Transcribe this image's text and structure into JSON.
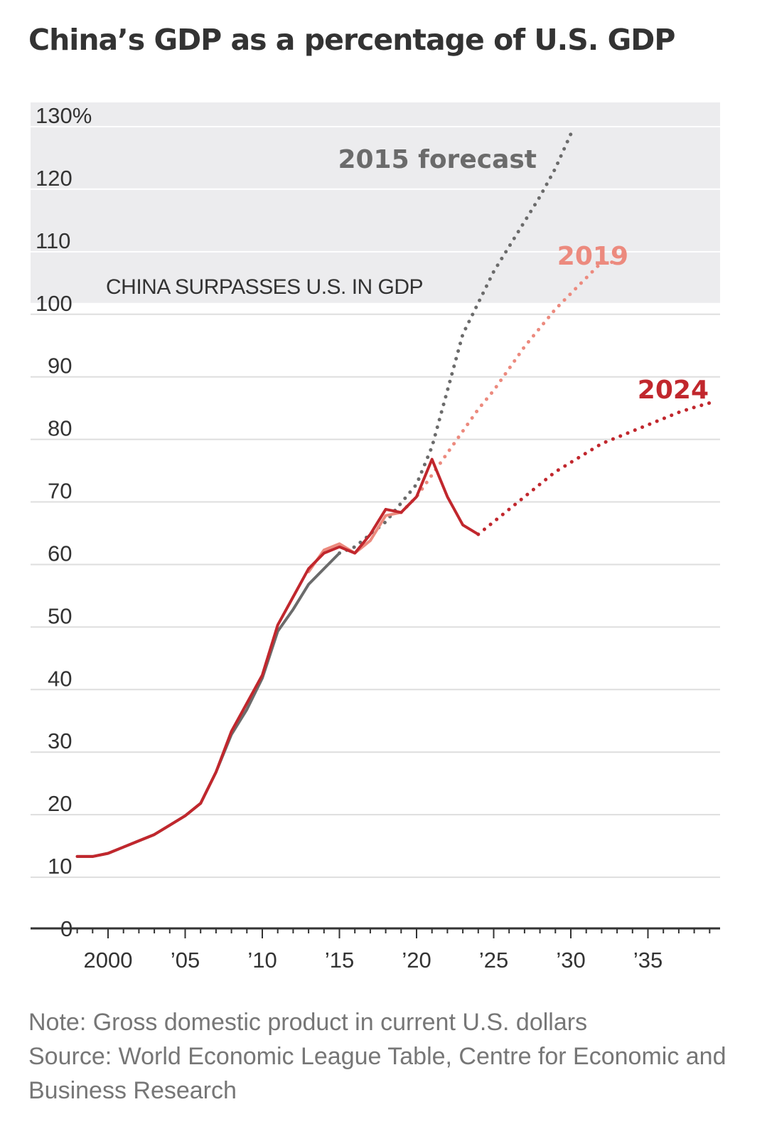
{
  "title": "China’s GDP as a percentage of U.S. GDP",
  "notes": {
    "note": "Note: Gross domestic product in current U.S. dollars",
    "source": "Source: World Economic League Table, Centre for Economic and Business Research"
  },
  "colors": {
    "forecast_2015": "#6b6b6b",
    "forecast_2019": "#ec8a7e",
    "forecast_2024": "#c1272d",
    "shade": "#ececee",
    "grid": "#dedede",
    "axis": "#333333"
  },
  "chart_data": {
    "type": "line",
    "title": "China’s GDP as a percentage of U.S. GDP",
    "xlabel": "",
    "ylabel": "",
    "xlim": [
      1998,
      2039
    ],
    "ylim": [
      0,
      130
    ],
    "y_ticks": [
      {
        "value": 130,
        "label": "130%"
      },
      {
        "value": 120,
        "label": "120"
      },
      {
        "value": 110,
        "label": "110"
      },
      {
        "value": 100,
        "label": "100"
      },
      {
        "value": 90,
        "label": "90"
      },
      {
        "value": 80,
        "label": "80"
      },
      {
        "value": 70,
        "label": "70"
      },
      {
        "value": 60,
        "label": "60"
      },
      {
        "value": 50,
        "label": "50"
      },
      {
        "value": 40,
        "label": "40"
      },
      {
        "value": 30,
        "label": "30"
      },
      {
        "value": 20,
        "label": "20"
      },
      {
        "value": 10,
        "label": "10"
      },
      {
        "value": 0,
        "label": "0"
      }
    ],
    "x_ticks": [
      {
        "value": 2000,
        "label": "2000"
      },
      {
        "value": 2005,
        "label": "’05"
      },
      {
        "value": 2010,
        "label": "’10"
      },
      {
        "value": 2015,
        "label": "’15"
      },
      {
        "value": 2020,
        "label": "’20"
      },
      {
        "value": 2025,
        "label": "’25"
      },
      {
        "value": 2030,
        "label": "’30"
      },
      {
        "value": 2035,
        "label": "’35"
      }
    ],
    "grid": true,
    "shaded_region": {
      "from": 100,
      "to": 130,
      "label": "CHINA SURPASSES U.S. IN GDP"
    },
    "series": [
      {
        "name": "2015 forecast",
        "color": "#6b6b6b",
        "actual": [
          [
            1998,
            11.5
          ],
          [
            1999,
            11.5
          ],
          [
            2000,
            12
          ],
          [
            2001,
            13
          ],
          [
            2002,
            14
          ],
          [
            2003,
            15
          ],
          [
            2004,
            16.5
          ],
          [
            2005,
            18
          ],
          [
            2006,
            20
          ],
          [
            2007,
            25
          ],
          [
            2008,
            31
          ],
          [
            2009,
            35
          ],
          [
            2010,
            40
          ],
          [
            2011,
            47.5
          ],
          [
            2012,
            51
          ],
          [
            2013,
            55
          ],
          [
            2014,
            57.5
          ],
          [
            2015,
            60
          ]
        ],
        "forecast": [
          [
            2015,
            60
          ],
          [
            2016,
            61
          ],
          [
            2017,
            63
          ],
          [
            2018,
            65
          ],
          [
            2019,
            68
          ],
          [
            2020,
            71
          ],
          [
            2021,
            77
          ],
          [
            2022,
            86
          ],
          [
            2023,
            95
          ],
          [
            2024,
            100
          ],
          [
            2025,
            105
          ],
          [
            2026,
            109
          ],
          [
            2027,
            113
          ],
          [
            2028,
            117
          ],
          [
            2029,
            121.5
          ],
          [
            2030,
            127
          ]
        ]
      },
      {
        "name": "2019",
        "color": "#ec8a7e",
        "actual": [
          [
            2013,
            57
          ],
          [
            2014,
            60.5
          ],
          [
            2015,
            61.5
          ],
          [
            2016,
            60
          ],
          [
            2017,
            62
          ],
          [
            2018,
            66
          ],
          [
            2019,
            66.5
          ]
        ],
        "forecast": [
          [
            2019,
            66.5
          ],
          [
            2020,
            69
          ],
          [
            2021,
            72.5
          ],
          [
            2022,
            76
          ],
          [
            2023,
            79.5
          ],
          [
            2024,
            83
          ],
          [
            2025,
            86
          ],
          [
            2026,
            89.5
          ],
          [
            2027,
            93
          ],
          [
            2028,
            96
          ],
          [
            2029,
            99
          ],
          [
            2030,
            101.5
          ],
          [
            2031,
            104
          ],
          [
            2032,
            106.5
          ],
          [
            2033,
            106.5
          ]
        ]
      },
      {
        "name": "2024",
        "color": "#c1272d",
        "actual": [
          [
            1998,
            11.5
          ],
          [
            1999,
            11.5
          ],
          [
            2000,
            12
          ],
          [
            2001,
            13
          ],
          [
            2002,
            14
          ],
          [
            2003,
            15
          ],
          [
            2004,
            16.5
          ],
          [
            2005,
            18
          ],
          [
            2006,
            20
          ],
          [
            2007,
            25
          ],
          [
            2008,
            31.5
          ],
          [
            2009,
            36
          ],
          [
            2010,
            40.5
          ],
          [
            2011,
            48.5
          ],
          [
            2012,
            53
          ],
          [
            2013,
            57.5
          ],
          [
            2014,
            60
          ],
          [
            2015,
            61
          ],
          [
            2016,
            60
          ],
          [
            2017,
            63
          ],
          [
            2018,
            67
          ],
          [
            2019,
            66.5
          ],
          [
            2020,
            69
          ],
          [
            2021,
            75
          ],
          [
            2022,
            69
          ],
          [
            2023,
            64.5
          ],
          [
            2024,
            63
          ]
        ],
        "forecast": [
          [
            2024,
            63
          ],
          [
            2025,
            65
          ],
          [
            2026,
            67
          ],
          [
            2027,
            69
          ],
          [
            2028,
            71
          ],
          [
            2029,
            73
          ],
          [
            2030,
            74.5
          ],
          [
            2031,
            76
          ],
          [
            2032,
            77.5
          ],
          [
            2033,
            78.5
          ],
          [
            2034,
            79.5
          ],
          [
            2035,
            80.5
          ],
          [
            2036,
            81.5
          ],
          [
            2037,
            82.5
          ],
          [
            2038,
            83.3
          ],
          [
            2039,
            84
          ]
        ]
      }
    ]
  }
}
